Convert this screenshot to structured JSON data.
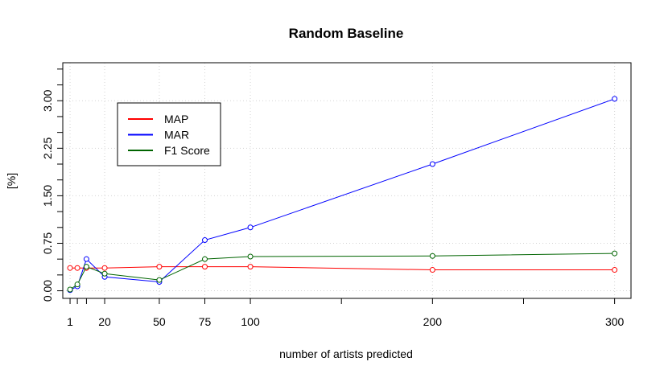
{
  "chart_data": {
    "type": "line",
    "title": "Random Baseline",
    "xlabel": "number of artists predicted",
    "ylabel": "[%]",
    "xlim": [
      -3,
      309
    ],
    "ylim": [
      -0.12,
      3.6
    ],
    "x_ticks": [
      1,
      5,
      10,
      20,
      50,
      75,
      100,
      200,
      300
    ],
    "x_tick_labels": [
      "1",
      "",
      "",
      "20",
      "50",
      "75",
      "100",
      "200",
      "300"
    ],
    "x_minor_ticks": [
      150,
      250
    ],
    "y_ticks": [
      0,
      0.75,
      1.5,
      2.25,
      3.0
    ],
    "y_tick_labels": [
      "0.00",
      "0.75",
      "1.50",
      "2.25",
      "3.00"
    ],
    "y_minor_ticks": [
      0.25,
      0.5,
      1.0,
      1.25,
      1.75,
      2.0,
      2.5,
      2.75,
      3.25,
      3.5
    ],
    "grid": true,
    "legend_position": "top-left",
    "x": [
      1,
      5,
      10,
      20,
      50,
      75,
      100,
      200,
      300
    ],
    "series": [
      {
        "name": "MAP",
        "color": "#ff0000",
        "values": [
          0.36,
          0.36,
          0.36,
          0.36,
          0.38,
          0.38,
          0.38,
          0.33,
          0.33
        ]
      },
      {
        "name": "MAR",
        "color": "#0000ff",
        "values": [
          0.01,
          0.07,
          0.5,
          0.22,
          0.14,
          0.8,
          1.0,
          2.0,
          3.03
        ]
      },
      {
        "name": "F1 Score",
        "color": "#006400",
        "values": [
          0.02,
          0.1,
          0.38,
          0.27,
          0.17,
          0.5,
          0.54,
          0.55,
          0.59
        ]
      }
    ]
  }
}
